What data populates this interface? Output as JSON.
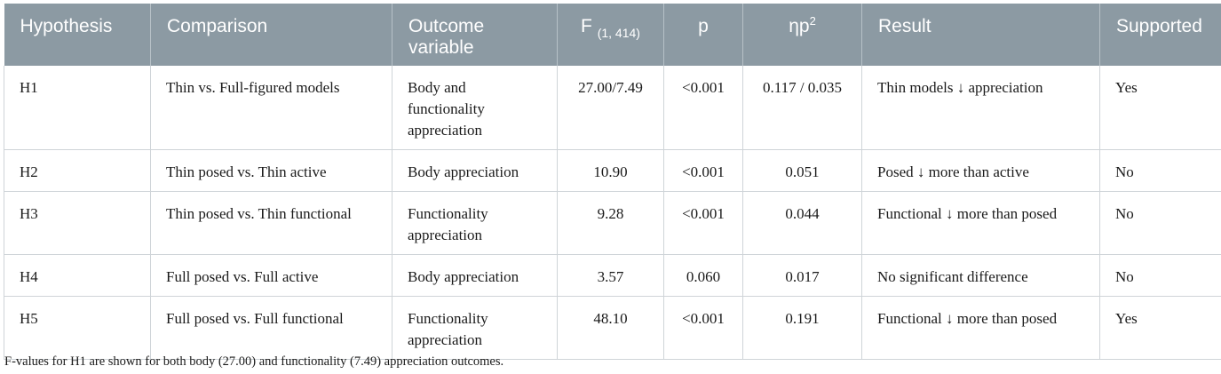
{
  "table": {
    "headers": {
      "hypothesis": "Hypothesis",
      "comparison": "Comparison",
      "outcome_line1": "Outcome",
      "outcome_line2": "variable",
      "f_main": "F",
      "f_sub": "(1, 414)",
      "p": "p",
      "eta_main": "ηp",
      "eta_sup": "2",
      "result": "Result",
      "supported": "Supported"
    },
    "rows": [
      {
        "hypothesis": "H1",
        "comparison": "Thin vs. Full-figured models",
        "outcome_line1": "Body and",
        "outcome_line2": "functionality",
        "outcome_line3": "appreciation",
        "f": "27.00/7.49",
        "p": "<0.001",
        "eta": "0.117 / 0.035",
        "result": "Thin models ↓ appreciation",
        "supported": "Yes"
      },
      {
        "hypothesis": "H2",
        "comparison": "Thin posed vs. Thin active",
        "outcome_line1": "Body appreciation",
        "f": "10.90",
        "p": "<0.001",
        "eta": "0.051",
        "result": "Posed ↓ more than active",
        "supported": "No"
      },
      {
        "hypothesis": "H3",
        "comparison": "Thin posed vs. Thin functional",
        "outcome_line1": "Functionality",
        "outcome_line2": "appreciation",
        "f": "9.28",
        "p": "<0.001",
        "eta": "0.044",
        "result": "Functional ↓ more than posed",
        "supported": "No"
      },
      {
        "hypothesis": "H4",
        "comparison": "Full posed vs. Full active",
        "outcome_line1": "Body appreciation",
        "f": "3.57",
        "p": "0.060",
        "eta": "0.017",
        "result": "No significant difference",
        "supported": "No"
      },
      {
        "hypothesis": "H5",
        "comparison": "Full posed vs. Full functional",
        "outcome_line1": "Functionality",
        "outcome_line2": "appreciation",
        "f": "48.10",
        "p": "<0.001",
        "eta": "0.191",
        "result": "Functional ↓ more than posed",
        "supported": "Yes"
      }
    ]
  },
  "footnote": "F-values for H1 are shown for both body (27.00) and functionality (7.49) appreciation outcomes."
}
